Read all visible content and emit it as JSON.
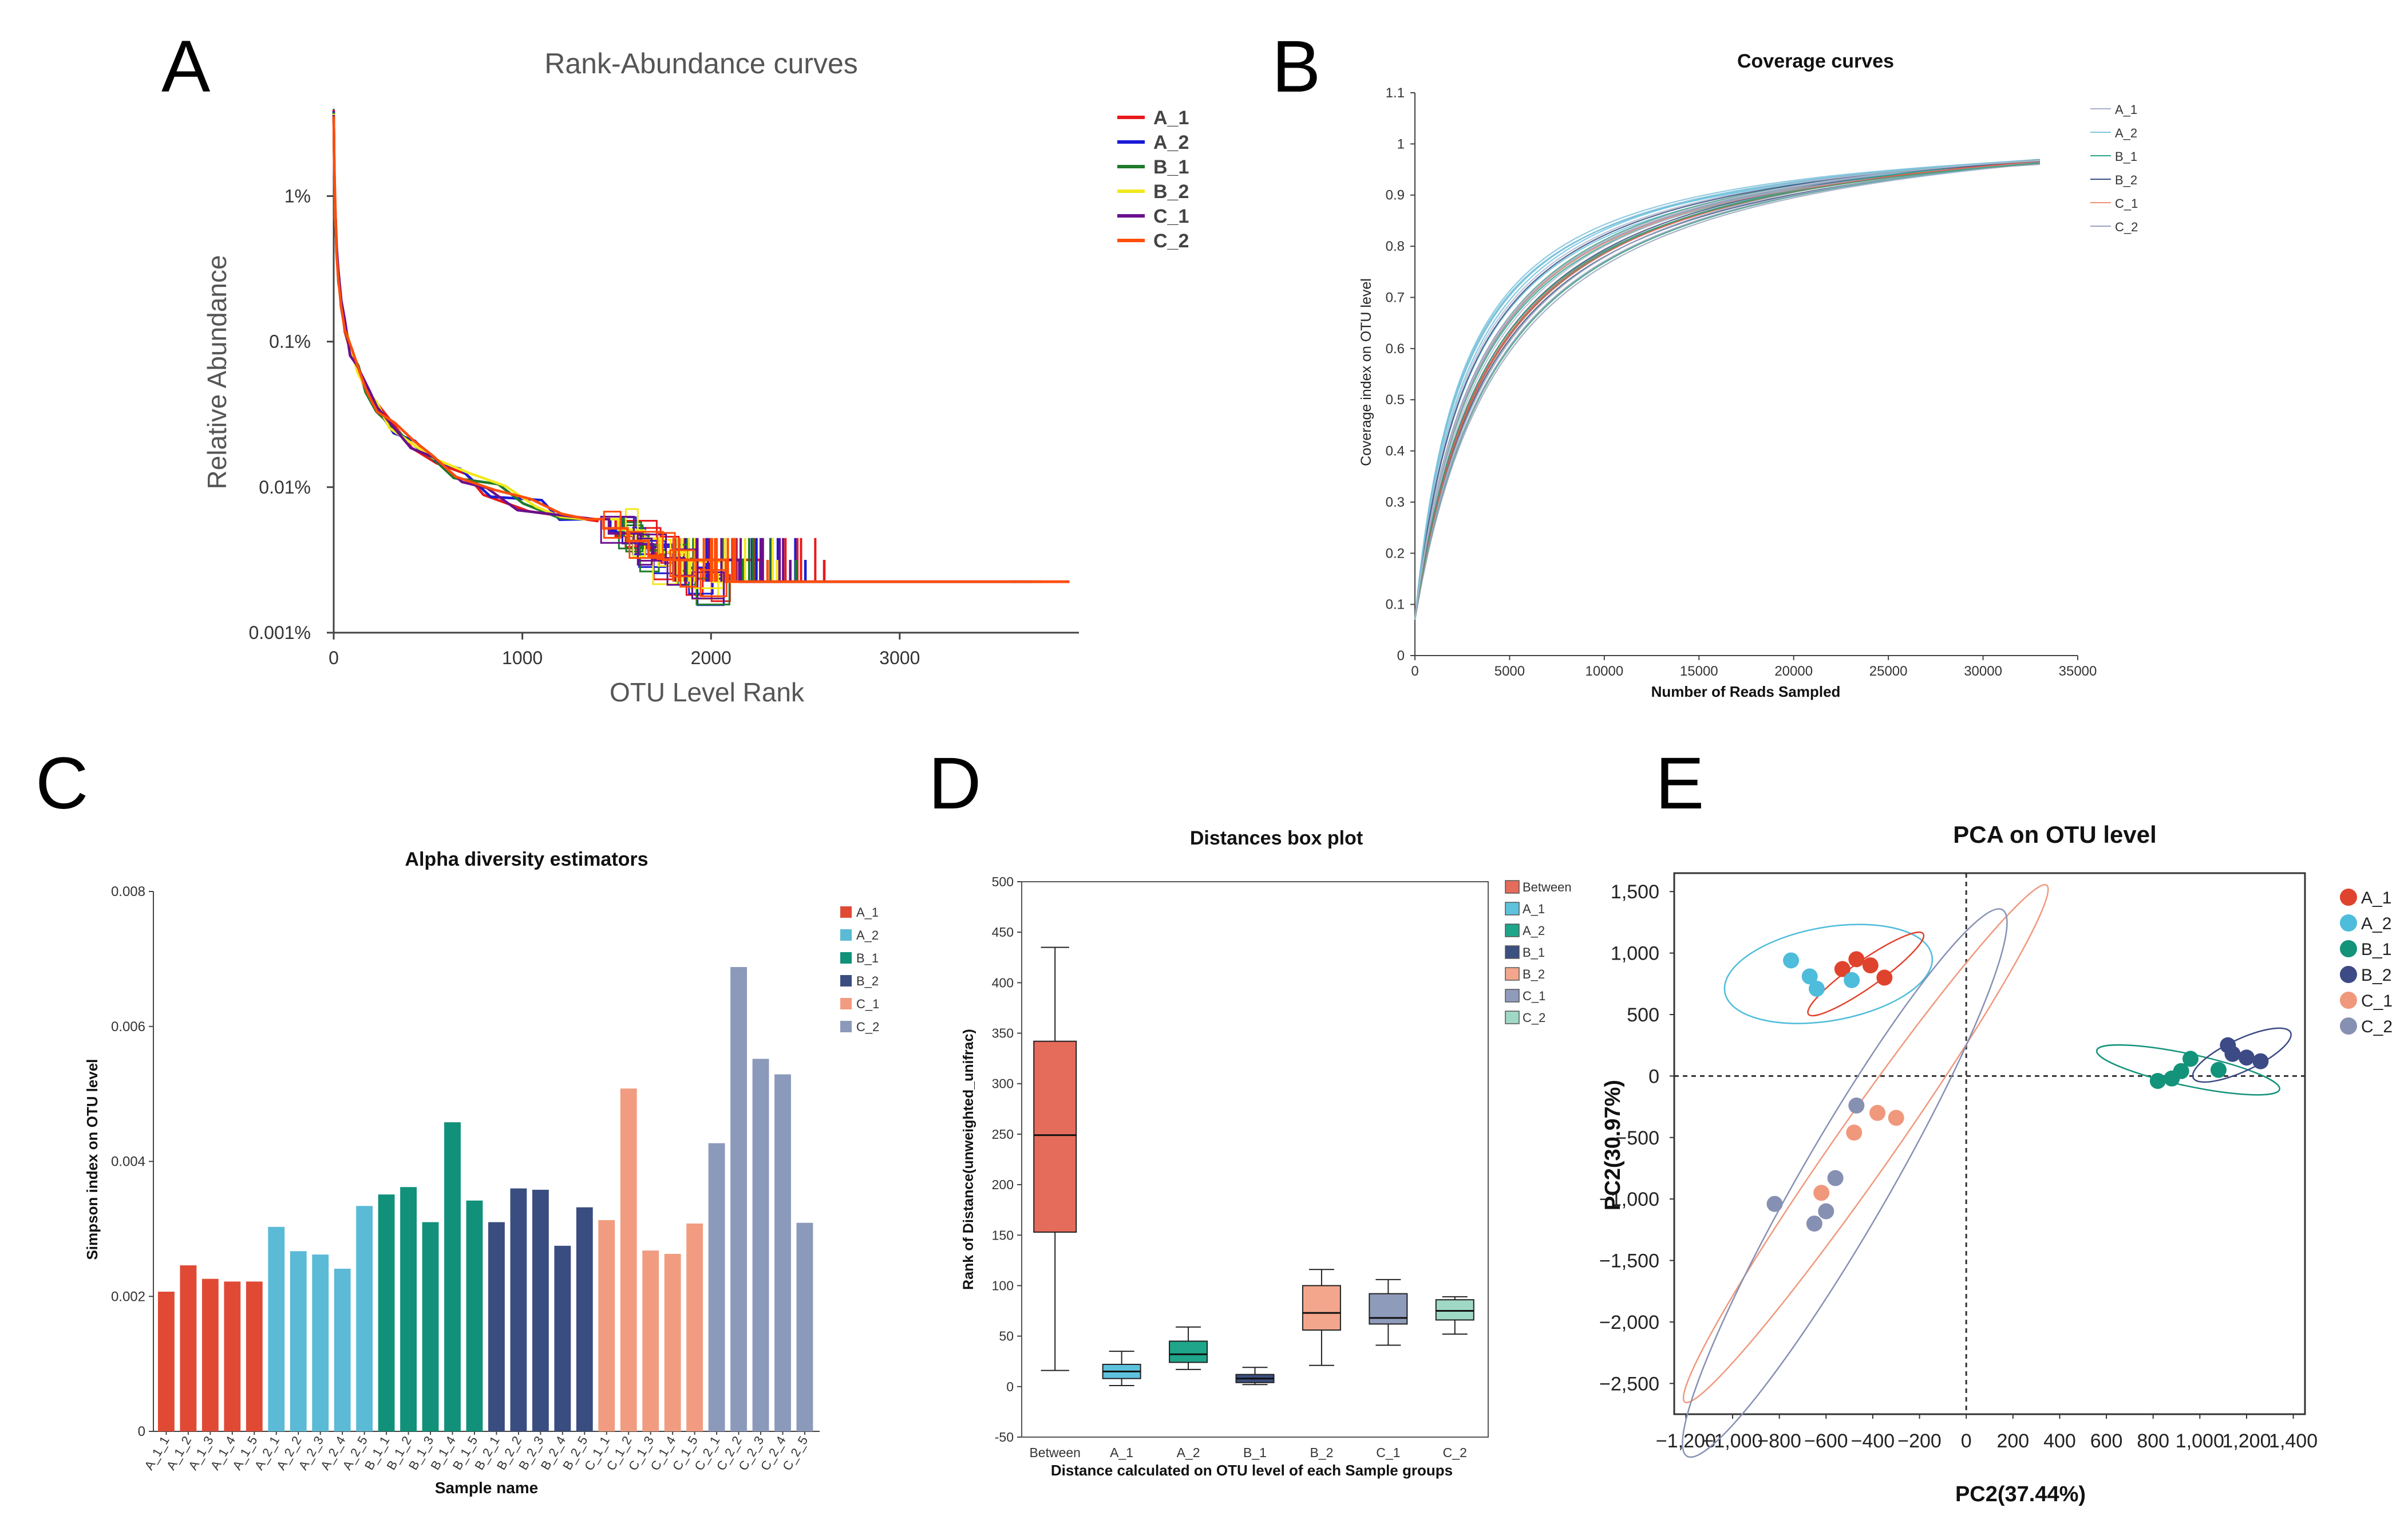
{
  "panel_labels": [
    "A",
    "B",
    "C",
    "D",
    "E"
  ],
  "colors": {
    "A_1_line": "#e8181b",
    "A_2_line": "#1a1ad6",
    "B_1_line": "#1e7a2a",
    "B_2_line": "#f2e81c",
    "C_1_line": "#6a0f8e",
    "C_2_line": "#ff4d0a",
    "bar_A_1": "#e04a35",
    "bar_A_2": "#5bbad6",
    "bar_B_1": "#11917a",
    "bar_B_2": "#3a4d80",
    "bar_C_1": "#f19c80",
    "bar_C_2": "#8b99bb",
    "box_Between": "#e56b5a",
    "box_A_1": "#5fc2dd",
    "box_A_2": "#1ea58a",
    "box_B_1": "#3b4f80",
    "box_B_2": "#f3a68c",
    "box_C_1": "#8f9bba",
    "box_C_2": "#9fd8c5",
    "pca_A_1": "#e0432d",
    "pca_A_2": "#4ebcdb",
    "pca_B_1": "#12937a",
    "pca_B_2": "#3c4a85",
    "pca_C_1": "#f0987c",
    "pca_C_2": "#8690b3"
  },
  "chart_data": [
    {
      "id": "A",
      "type": "line",
      "title": "Rank-Abundance curves",
      "xlabel": "OTU Level Rank",
      "ylabel": "Relative Abundance",
      "xlim": [
        0,
        3950
      ],
      "ylim_log10": [
        -3,
        0.6
      ],
      "xticks": [
        0,
        1000,
        2000,
        3000
      ],
      "xtick_labels": [
        "0",
        "1000",
        "2000",
        "3000"
      ],
      "yticks_log10": [
        0,
        -1,
        -2,
        -3
      ],
      "ytick_labels": [
        "1%",
        "0.1%",
        "0.01%",
        "0.001%"
      ],
      "legend": [
        "A_1",
        "A_2",
        "B_1",
        "B_2",
        "C_1",
        "C_2"
      ],
      "series": [
        {
          "name": "A_1",
          "max_rank": 2600,
          "tail_rank": 3900
        },
        {
          "name": "A_2",
          "max_rank": 2500,
          "tail_rank": 3700
        },
        {
          "name": "B_1",
          "max_rank": 2450,
          "tail_rank": 3750
        },
        {
          "name": "B_2",
          "max_rank": 2350,
          "tail_rank": 3600
        },
        {
          "name": "C_1",
          "max_rank": 2420,
          "tail_rank": 3620
        },
        {
          "name": "C_2",
          "max_rank": 2300,
          "tail_rank": 3900
        }
      ]
    },
    {
      "id": "B",
      "type": "line",
      "title": "Coverage curves",
      "xlabel": "Number of Reads Sampled",
      "ylabel": "Coverage index on OTU level",
      "xlim": [
        0,
        35000
      ],
      "ylim": [
        0,
        1.1
      ],
      "xticks": [
        0,
        5000,
        10000,
        15000,
        20000,
        25000,
        30000,
        35000
      ],
      "xtick_labels": [
        "0",
        "5000",
        "10000",
        "15000",
        "20000",
        "25000",
        "30000",
        "35000"
      ],
      "yticks": [
        0,
        0.1,
        0.2,
        0.3,
        0.4,
        0.5,
        0.6,
        0.7,
        0.8,
        0.9,
        1,
        1.1
      ],
      "ytick_labels": [
        "0",
        "0.1",
        "0.2",
        "0.3",
        "0.4",
        "0.5",
        "0.6",
        "0.7",
        "0.8",
        "0.9",
        "1",
        "1.1"
      ],
      "legend": [
        "A_1",
        "A_2",
        "B_1",
        "B_2",
        "C_1",
        "C_2"
      ],
      "series_count": 30,
      "end_x": 33000,
      "end_y_range": [
        0.96,
        0.97
      ]
    },
    {
      "id": "C",
      "type": "bar",
      "title": "Alpha diversity estimators",
      "xlabel": "Sample name",
      "ylabel": "Simpson index on OTU level",
      "ylim": [
        0,
        0.008
      ],
      "yticks": [
        0,
        0.002,
        0.004,
        0.006,
        0.008
      ],
      "ytick_labels": [
        "0",
        "0.002",
        "0.004",
        "0.006",
        "0.008"
      ],
      "legend": [
        "A_1",
        "A_2",
        "B_1",
        "B_2",
        "C_1",
        "C_2"
      ],
      "series": [
        {
          "name": "A_1",
          "categories": [
            "A_1_1",
            "A_1_2",
            "A_1_3",
            "A_1_4",
            "A_1_5"
          ],
          "values": [
            0.00207,
            0.00246,
            0.00226,
            0.00222,
            0.00222
          ]
        },
        {
          "name": "A_2",
          "categories": [
            "A_2_1",
            "A_2_2",
            "A_2_3",
            "A_2_4",
            "A_2_5"
          ],
          "values": [
            0.00303,
            0.00267,
            0.00262,
            0.00241,
            0.00334
          ]
        },
        {
          "name": "B_1",
          "categories": [
            "B_1_1",
            "B_1_2",
            "B_1_3",
            "B_1_4",
            "B_1_5"
          ],
          "values": [
            0.00351,
            0.00362,
            0.0031,
            0.00458,
            0.00342
          ]
        },
        {
          "name": "B_2",
          "categories": [
            "B_2_1",
            "B_2_2",
            "B_2_3",
            "B_2_4",
            "B_2_5"
          ],
          "values": [
            0.0031,
            0.0036,
            0.00358,
            0.00275,
            0.00332
          ]
        },
        {
          "name": "C_1",
          "categories": [
            "C_1_1",
            "C_1_2",
            "C_1_3",
            "C_1_4",
            "C_1_5"
          ],
          "values": [
            0.00313,
            0.00508,
            0.00268,
            0.00263,
            0.00308
          ]
        },
        {
          "name": "C_2",
          "categories": [
            "C_2_1",
            "C_2_2",
            "C_2_3",
            "C_2_4",
            "C_2_5"
          ],
          "values": [
            0.00427,
            0.00688,
            0.00552,
            0.00529,
            0.00309
          ]
        }
      ]
    },
    {
      "id": "D",
      "type": "box",
      "title": "Distances box plot",
      "xlabel": "Distance calculated on OTU level of each Sample groups",
      "ylabel": "Rank of Distance(unweighted_unifrac)",
      "ylim": [
        -50,
        500
      ],
      "yticks": [
        -50,
        0,
        50,
        100,
        150,
        200,
        250,
        300,
        350,
        400,
        450,
        500
      ],
      "ytick_labels": [
        "-50",
        "0",
        "50",
        "100",
        "150",
        "200",
        "250",
        "300",
        "350",
        "400",
        "450",
        "500"
      ],
      "legend": [
        "Between",
        "A_1",
        "A_2",
        "B_1",
        "B_2",
        "C_1",
        "C_2"
      ],
      "boxes": [
        {
          "name": "Between",
          "min": 16,
          "q1": 153,
          "median": 249,
          "q3": 342,
          "max": 435
        },
        {
          "name": "A_1",
          "min": 1,
          "q1": 8,
          "median": 15,
          "q3": 22,
          "max": 35
        },
        {
          "name": "A_2",
          "min": 17,
          "q1": 24,
          "median": 32,
          "q3": 45,
          "max": 59
        },
        {
          "name": "B_1",
          "min": 2,
          "q1": 4,
          "median": 8,
          "q3": 12,
          "max": 19
        },
        {
          "name": "B_2",
          "min": 21,
          "q1": 56,
          "median": 73,
          "q3": 100,
          "max": 116
        },
        {
          "name": "C_1",
          "min": 41,
          "q1": 62,
          "median": 68,
          "q3": 92,
          "max": 106
        },
        {
          "name": "C_2",
          "min": 52,
          "q1": 66,
          "median": 75,
          "q3": 86,
          "max": 89
        }
      ]
    },
    {
      "id": "E",
      "type": "scatter",
      "title": "PCA on OTU level",
      "xlabel": "PC2(37.44%)",
      "ylabel": "PC2(30.97%)",
      "xlim": [
        -1250,
        1450
      ],
      "ylim": [
        -2750,
        1650
      ],
      "xticks": [
        -1200,
        -1000,
        -800,
        -600,
        -400,
        -200,
        0,
        200,
        400,
        600,
        800,
        1000,
        1200,
        1400
      ],
      "xtick_labels": [
        "−1,200",
        "−1,000",
        "−800",
        "−600",
        "−400",
        "−200",
        "0",
        "200",
        "400",
        "600",
        "800",
        "1,000",
        "1,200",
        "1,400"
      ],
      "yticks": [
        1500,
        1000,
        500,
        0,
        -500,
        -1000,
        -1500,
        -2000,
        -2500
      ],
      "ytick_labels": [
        "1,500",
        "1,000",
        "500",
        "0",
        "−500",
        "−1,000",
        "−1,500",
        "−2,000",
        "−2,500"
      ],
      "legend": [
        "A_1",
        "A_2",
        "B_1",
        "B_2",
        "C_1",
        "C_2"
      ],
      "series": [
        {
          "name": "A_1",
          "points": [
            [
              -470,
              950
            ],
            [
              -410,
              900
            ],
            [
              -350,
              800
            ],
            [
              -530,
              870
            ]
          ]
        },
        {
          "name": "A_2",
          "points": [
            [
              -750,
              940
            ],
            [
              -670,
              810
            ],
            [
              -640,
              710
            ],
            [
              -490,
              780
            ]
          ]
        },
        {
          "name": "B_1",
          "points": [
            [
              820,
              -40
            ],
            [
              880,
              -20
            ],
            [
              920,
              40
            ],
            [
              960,
              140
            ],
            [
              1080,
              50
            ]
          ]
        },
        {
          "name": "B_2",
          "points": [
            [
              1120,
              250
            ],
            [
              1140,
              180
            ],
            [
              1200,
              150
            ],
            [
              1260,
              120
            ]
          ]
        },
        {
          "name": "C_1",
          "points": [
            [
              -380,
              -300
            ],
            [
              -300,
              -340
            ],
            [
              -480,
              -460
            ],
            [
              -620,
              -950
            ]
          ]
        },
        {
          "name": "C_2",
          "points": [
            [
              -470,
              -240
            ],
            [
              -560,
              -830
            ],
            [
              -820,
              -1040
            ],
            [
              -600,
              -1100
            ],
            [
              -650,
              -1200
            ]
          ]
        }
      ],
      "ellipses": [
        {
          "name": "A_2",
          "cx": -590,
          "cy": 830,
          "rx": 450,
          "ry": 380,
          "angle_deg": -10
        },
        {
          "name": "A_1",
          "cx": -430,
          "cy": 830,
          "rx": 300,
          "ry": 110,
          "angle_deg": -35
        },
        {
          "name": "B_1",
          "cx": 950,
          "cy": 50,
          "rx": 400,
          "ry": 130,
          "angle_deg": 12
        },
        {
          "name": "B_2",
          "cx": 1180,
          "cy": 170,
          "rx": 230,
          "ry": 130,
          "angle_deg": -25
        },
        {
          "name": "C_1",
          "cx": -430,
          "cy": -550,
          "rx": 1350,
          "ry": 230,
          "angle_deg": -55
        },
        {
          "name": "C_2",
          "cx": -520,
          "cy": -870,
          "rx": 1350,
          "ry": 360,
          "angle_deg": -60
        }
      ]
    }
  ]
}
